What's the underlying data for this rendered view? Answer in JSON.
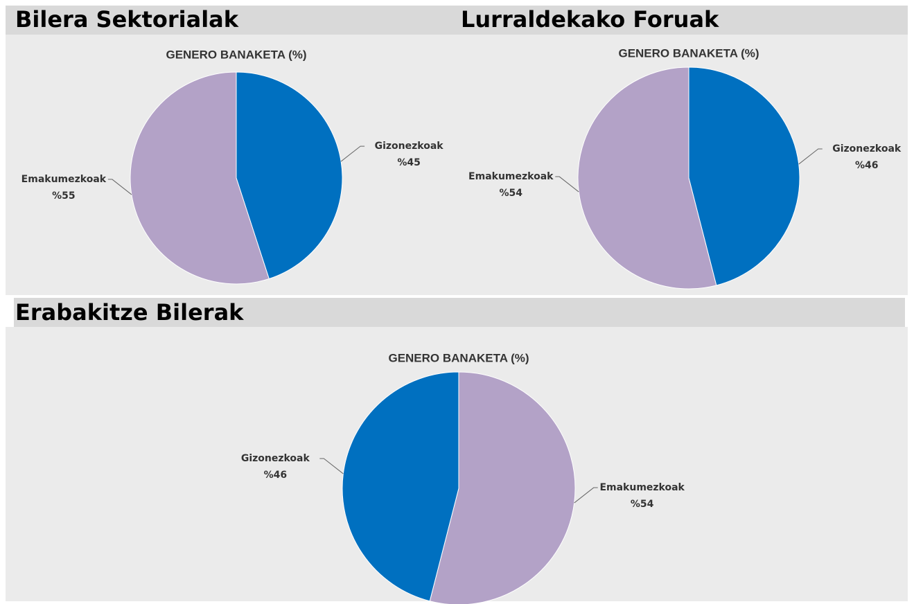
{
  "chart_data": [
    {
      "type": "pie",
      "heading": "Bilera Sektorialak",
      "title": "GENERO BANAKETA (%)",
      "categories": [
        "Gizonezkoak",
        "Emakumezkoak"
      ],
      "values": [
        45,
        55
      ],
      "value_labels": [
        "%45",
        "%55"
      ],
      "colors": [
        "#0070c0",
        "#b3a2c7"
      ]
    },
    {
      "type": "pie",
      "heading": "Lurraldekako Foruak",
      "title": "GENERO BANAKETA (%)",
      "categories": [
        "Gizonezkoak",
        "Emakumezkoak"
      ],
      "values": [
        46,
        54
      ],
      "value_labels": [
        "%46",
        "%54"
      ],
      "colors": [
        "#0070c0",
        "#b3a2c7"
      ]
    },
    {
      "type": "pie",
      "heading": "Erabakitze Bilerak",
      "title": "GENERO BANAKETA (%)",
      "categories": [
        "Emakumezkoak",
        "Gizonezkoak"
      ],
      "values": [
        54,
        46
      ],
      "value_labels": [
        "%54",
        "%46"
      ],
      "colors": [
        "#b3a2c7",
        "#0070c0"
      ]
    }
  ]
}
